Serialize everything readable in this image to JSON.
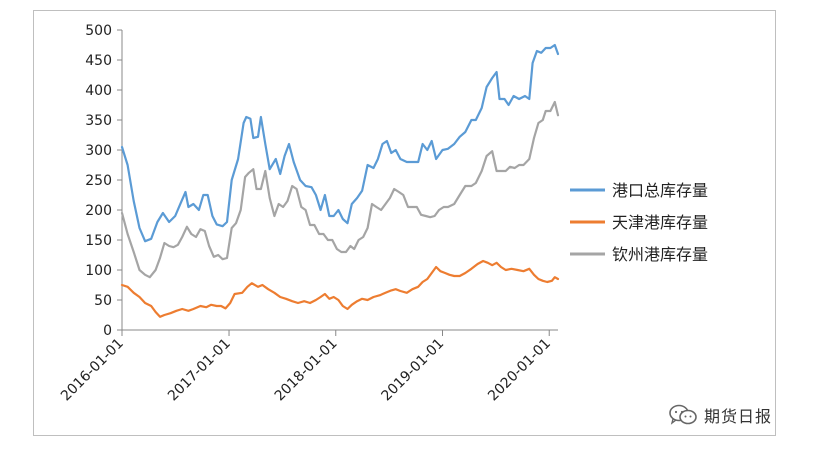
{
  "chart_data": {
    "type": "line",
    "title": "",
    "xlabel": "",
    "ylabel": "",
    "ylim": [
      0,
      500
    ],
    "yticks": [
      0,
      50,
      100,
      150,
      200,
      250,
      300,
      350,
      400,
      450,
      500
    ],
    "xticks": [
      "2016-01-01",
      "2017-01-01",
      "2018-01-01",
      "2019-01-01",
      "2020-01-01"
    ],
    "xlim": [
      "2016-01-01",
      "2020-01-31"
    ],
    "grid": false,
    "legend": "right",
    "series": [
      {
        "name": "港口总库存量",
        "color": "#5b9bd5",
        "points": [
          [
            "2016-01-01",
            305
          ],
          [
            "2016-01-20",
            275
          ],
          [
            "2016-02-10",
            215
          ],
          [
            "2016-03-01",
            170
          ],
          [
            "2016-03-20",
            148
          ],
          [
            "2016-04-10",
            152
          ],
          [
            "2016-05-01",
            180
          ],
          [
            "2016-05-20",
            195
          ],
          [
            "2016-06-10",
            180
          ],
          [
            "2016-07-01",
            190
          ],
          [
            "2016-07-20",
            212
          ],
          [
            "2016-08-05",
            230
          ],
          [
            "2016-08-15",
            205
          ],
          [
            "2016-09-01",
            210
          ],
          [
            "2016-09-20",
            200
          ],
          [
            "2016-10-05",
            225
          ],
          [
            "2016-10-20",
            225
          ],
          [
            "2016-11-05",
            190
          ],
          [
            "2016-11-20",
            176
          ],
          [
            "2016-12-10",
            173
          ],
          [
            "2016-12-25",
            180
          ],
          [
            "2017-01-10",
            250
          ],
          [
            "2017-02-01",
            285
          ],
          [
            "2017-02-20",
            345
          ],
          [
            "2017-03-01",
            355
          ],
          [
            "2017-03-15",
            352
          ],
          [
            "2017-03-25",
            320
          ],
          [
            "2017-04-10",
            322
          ],
          [
            "2017-04-20",
            355
          ],
          [
            "2017-05-05",
            310
          ],
          [
            "2017-05-20",
            268
          ],
          [
            "2017-06-10",
            285
          ],
          [
            "2017-06-25",
            260
          ],
          [
            "2017-07-10",
            290
          ],
          [
            "2017-07-25",
            310
          ],
          [
            "2017-08-10",
            280
          ],
          [
            "2017-09-01",
            250
          ],
          [
            "2017-09-20",
            240
          ],
          [
            "2017-10-10",
            238
          ],
          [
            "2017-10-25",
            225
          ],
          [
            "2017-11-10",
            200
          ],
          [
            "2017-11-25",
            225
          ],
          [
            "2017-12-10",
            190
          ],
          [
            "2017-12-25",
            190
          ],
          [
            "2018-01-10",
            200
          ],
          [
            "2018-01-25",
            185
          ],
          [
            "2018-02-10",
            178
          ],
          [
            "2018-02-25",
            210
          ],
          [
            "2018-03-15",
            220
          ],
          [
            "2018-04-01",
            232
          ],
          [
            "2018-04-20",
            275
          ],
          [
            "2018-05-10",
            270
          ],
          [
            "2018-05-25",
            285
          ],
          [
            "2018-06-10",
            310
          ],
          [
            "2018-06-25",
            315
          ],
          [
            "2018-07-10",
            295
          ],
          [
            "2018-07-25",
            300
          ],
          [
            "2018-08-10",
            285
          ],
          [
            "2018-09-01",
            280
          ],
          [
            "2018-09-20",
            280
          ],
          [
            "2018-10-10",
            280
          ],
          [
            "2018-10-25",
            310
          ],
          [
            "2018-11-10",
            300
          ],
          [
            "2018-11-25",
            315
          ],
          [
            "2018-12-10",
            285
          ],
          [
            "2019-01-01",
            300
          ],
          [
            "2019-01-20",
            302
          ],
          [
            "2019-02-10",
            310
          ],
          [
            "2019-03-01",
            322
          ],
          [
            "2019-03-20",
            330
          ],
          [
            "2019-04-10",
            350
          ],
          [
            "2019-04-25",
            350
          ],
          [
            "2019-05-15",
            370
          ],
          [
            "2019-06-01",
            405
          ],
          [
            "2019-06-20",
            420
          ],
          [
            "2019-07-05",
            430
          ],
          [
            "2019-07-15",
            385
          ],
          [
            "2019-08-01",
            385
          ],
          [
            "2019-08-15",
            375
          ],
          [
            "2019-09-01",
            390
          ],
          [
            "2019-09-20",
            385
          ],
          [
            "2019-10-10",
            390
          ],
          [
            "2019-10-25",
            385
          ],
          [
            "2019-11-05",
            445
          ],
          [
            "2019-11-20",
            465
          ],
          [
            "2019-12-05",
            462
          ],
          [
            "2019-12-20",
            470
          ],
          [
            "2020-01-05",
            470
          ],
          [
            "2020-01-20",
            475
          ],
          [
            "2020-01-31",
            460
          ]
        ]
      },
      {
        "name": "天津港库存量",
        "color": "#ed7d31",
        "points": [
          [
            "2016-01-01",
            75
          ],
          [
            "2016-01-20",
            72
          ],
          [
            "2016-02-10",
            62
          ],
          [
            "2016-03-01",
            55
          ],
          [
            "2016-03-20",
            45
          ],
          [
            "2016-04-10",
            40
          ],
          [
            "2016-04-25",
            30
          ],
          [
            "2016-05-10",
            22
          ],
          [
            "2016-05-25",
            25
          ],
          [
            "2016-06-15",
            28
          ],
          [
            "2016-07-05",
            32
          ],
          [
            "2016-07-25",
            35
          ],
          [
            "2016-08-15",
            32
          ],
          [
            "2016-09-01",
            35
          ],
          [
            "2016-09-25",
            40
          ],
          [
            "2016-10-15",
            38
          ],
          [
            "2016-11-01",
            42
          ],
          [
            "2016-11-20",
            40
          ],
          [
            "2016-12-05",
            40
          ],
          [
            "2016-12-20",
            36
          ],
          [
            "2017-01-05",
            45
          ],
          [
            "2017-01-20",
            60
          ],
          [
            "2017-02-15",
            62
          ],
          [
            "2017-03-05",
            72
          ],
          [
            "2017-03-20",
            78
          ],
          [
            "2017-04-10",
            72
          ],
          [
            "2017-04-25",
            75
          ],
          [
            "2017-05-15",
            68
          ],
          [
            "2017-06-05",
            62
          ],
          [
            "2017-06-25",
            55
          ],
          [
            "2017-07-15",
            52
          ],
          [
            "2017-08-05",
            48
          ],
          [
            "2017-08-25",
            45
          ],
          [
            "2017-09-15",
            48
          ],
          [
            "2017-10-05",
            45
          ],
          [
            "2017-10-25",
            50
          ],
          [
            "2017-11-10",
            55
          ],
          [
            "2017-11-25",
            60
          ],
          [
            "2017-12-10",
            52
          ],
          [
            "2017-12-25",
            55
          ],
          [
            "2018-01-10",
            50
          ],
          [
            "2018-01-25",
            40
          ],
          [
            "2018-02-10",
            35
          ],
          [
            "2018-02-25",
            42
          ],
          [
            "2018-03-15",
            48
          ],
          [
            "2018-04-01",
            52
          ],
          [
            "2018-04-20",
            50
          ],
          [
            "2018-05-10",
            55
          ],
          [
            "2018-06-01",
            58
          ],
          [
            "2018-06-20",
            62
          ],
          [
            "2018-07-10",
            66
          ],
          [
            "2018-07-25",
            68
          ],
          [
            "2018-08-10",
            65
          ],
          [
            "2018-09-01",
            62
          ],
          [
            "2018-09-20",
            68
          ],
          [
            "2018-10-10",
            72
          ],
          [
            "2018-10-25",
            80
          ],
          [
            "2018-11-10",
            85
          ],
          [
            "2018-11-25",
            95
          ],
          [
            "2018-12-10",
            105
          ],
          [
            "2018-12-25",
            98
          ],
          [
            "2019-01-10",
            95
          ],
          [
            "2019-01-25",
            92
          ],
          [
            "2019-02-10",
            90
          ],
          [
            "2019-03-01",
            90
          ],
          [
            "2019-03-20",
            95
          ],
          [
            "2019-04-10",
            102
          ],
          [
            "2019-05-01",
            110
          ],
          [
            "2019-05-20",
            115
          ],
          [
            "2019-06-05",
            112
          ],
          [
            "2019-06-20",
            108
          ],
          [
            "2019-07-05",
            112
          ],
          [
            "2019-07-20",
            105
          ],
          [
            "2019-08-05",
            100
          ],
          [
            "2019-08-25",
            102
          ],
          [
            "2019-09-15",
            100
          ],
          [
            "2019-10-05",
            98
          ],
          [
            "2019-10-25",
            102
          ],
          [
            "2019-11-10",
            92
          ],
          [
            "2019-11-25",
            85
          ],
          [
            "2019-12-10",
            82
          ],
          [
            "2019-12-25",
            80
          ],
          [
            "2020-01-10",
            82
          ],
          [
            "2020-01-20",
            88
          ],
          [
            "2020-01-31",
            85
          ]
        ]
      },
      {
        "name": "钦州港库存量",
        "color": "#a5a5a5",
        "points": [
          [
            "2016-01-01",
            195
          ],
          [
            "2016-01-20",
            160
          ],
          [
            "2016-02-10",
            130
          ],
          [
            "2016-03-01",
            100
          ],
          [
            "2016-03-20",
            92
          ],
          [
            "2016-04-05",
            88
          ],
          [
            "2016-04-25",
            100
          ],
          [
            "2016-05-10",
            120
          ],
          [
            "2016-05-25",
            145
          ],
          [
            "2016-06-10",
            140
          ],
          [
            "2016-06-25",
            138
          ],
          [
            "2016-07-10",
            142
          ],
          [
            "2016-07-25",
            155
          ],
          [
            "2016-08-10",
            172
          ],
          [
            "2016-08-25",
            160
          ],
          [
            "2016-09-10",
            155
          ],
          [
            "2016-09-25",
            168
          ],
          [
            "2016-10-10",
            165
          ],
          [
            "2016-10-25",
            140
          ],
          [
            "2016-11-10",
            122
          ],
          [
            "2016-11-25",
            125
          ],
          [
            "2016-12-10",
            118
          ],
          [
            "2016-12-25",
            120
          ],
          [
            "2017-01-10",
            170
          ],
          [
            "2017-01-25",
            178
          ],
          [
            "2017-02-10",
            200
          ],
          [
            "2017-02-25",
            255
          ],
          [
            "2017-03-10",
            262
          ],
          [
            "2017-03-25",
            268
          ],
          [
            "2017-04-05",
            235
          ],
          [
            "2017-04-20",
            235
          ],
          [
            "2017-05-05",
            265
          ],
          [
            "2017-05-20",
            220
          ],
          [
            "2017-06-05",
            190
          ],
          [
            "2017-06-20",
            210
          ],
          [
            "2017-07-05",
            205
          ],
          [
            "2017-07-20",
            215
          ],
          [
            "2017-08-05",
            240
          ],
          [
            "2017-08-20",
            235
          ],
          [
            "2017-09-05",
            205
          ],
          [
            "2017-09-20",
            200
          ],
          [
            "2017-10-05",
            175
          ],
          [
            "2017-10-20",
            175
          ],
          [
            "2017-11-05",
            160
          ],
          [
            "2017-11-20",
            160
          ],
          [
            "2017-12-05",
            150
          ],
          [
            "2017-12-20",
            150
          ],
          [
            "2018-01-05",
            135
          ],
          [
            "2018-01-20",
            130
          ],
          [
            "2018-02-05",
            130
          ],
          [
            "2018-02-20",
            140
          ],
          [
            "2018-03-05",
            135
          ],
          [
            "2018-03-20",
            150
          ],
          [
            "2018-04-05",
            155
          ],
          [
            "2018-04-20",
            170
          ],
          [
            "2018-05-05",
            210
          ],
          [
            "2018-05-20",
            205
          ],
          [
            "2018-06-05",
            200
          ],
          [
            "2018-06-20",
            210
          ],
          [
            "2018-07-05",
            220
          ],
          [
            "2018-07-20",
            235
          ],
          [
            "2018-08-05",
            230
          ],
          [
            "2018-08-20",
            225
          ],
          [
            "2018-09-05",
            205
          ],
          [
            "2018-09-20",
            205
          ],
          [
            "2018-10-05",
            205
          ],
          [
            "2018-10-20",
            192
          ],
          [
            "2018-11-05",
            190
          ],
          [
            "2018-11-20",
            188
          ],
          [
            "2018-12-05",
            190
          ],
          [
            "2018-12-20",
            200
          ],
          [
            "2019-01-05",
            205
          ],
          [
            "2019-01-20",
            205
          ],
          [
            "2019-02-10",
            210
          ],
          [
            "2019-03-01",
            225
          ],
          [
            "2019-03-20",
            240
          ],
          [
            "2019-04-10",
            240
          ],
          [
            "2019-04-25",
            245
          ],
          [
            "2019-05-15",
            265
          ],
          [
            "2019-06-01",
            290
          ],
          [
            "2019-06-20",
            298
          ],
          [
            "2019-07-05",
            265
          ],
          [
            "2019-07-20",
            265
          ],
          [
            "2019-08-05",
            265
          ],
          [
            "2019-08-20",
            272
          ],
          [
            "2019-09-05",
            270
          ],
          [
            "2019-09-20",
            275
          ],
          [
            "2019-10-05",
            275
          ],
          [
            "2019-10-25",
            285
          ],
          [
            "2019-11-10",
            320
          ],
          [
            "2019-11-25",
            345
          ],
          [
            "2019-12-10",
            350
          ],
          [
            "2019-12-20",
            365
          ],
          [
            "2020-01-05",
            365
          ],
          [
            "2020-01-20",
            380
          ],
          [
            "2020-01-31",
            358
          ]
        ]
      }
    ]
  },
  "watermark": {
    "text": "期货日报",
    "icon": "wechat-icon"
  }
}
